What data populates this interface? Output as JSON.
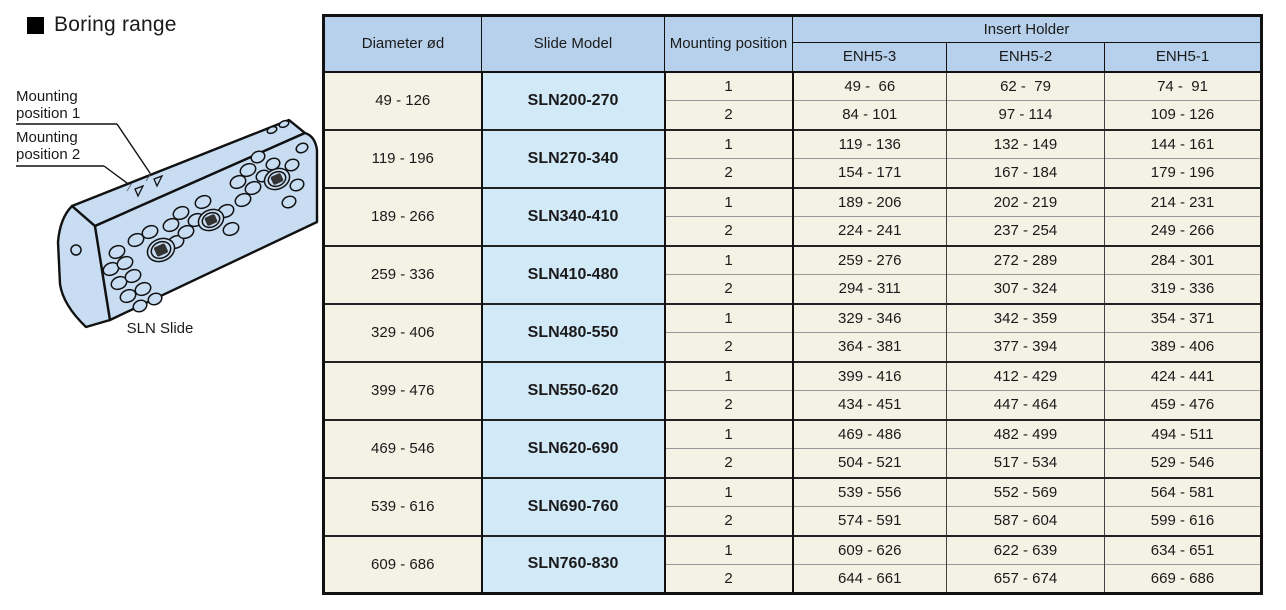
{
  "page": {
    "title": "Boring range"
  },
  "figure": {
    "label_position1": "Mounting position 1",
    "label_position2": "Mounting position 2",
    "caption": "SLN Slide"
  },
  "table": {
    "headers": {
      "diameter": "Diameter ød",
      "slide_model": "Slide Model",
      "mounting_position": "Mounting position",
      "insert_holder": "Insert Holder",
      "holder_models": [
        "ENH5-3",
        "ENH5-2",
        "ENH5-1"
      ]
    },
    "rows": [
      {
        "diameter": "49 - 126",
        "model": "SLN200-270",
        "positions": [
          {
            "position": "1",
            "ranges": [
              "49 -  66",
              "62 -  79",
              "74 -  91"
            ]
          },
          {
            "position": "2",
            "ranges": [
              "84 - 101",
              "97 - 114",
              "109 - 126"
            ]
          }
        ]
      },
      {
        "diameter": "119 - 196",
        "model": "SLN270-340",
        "positions": [
          {
            "position": "1",
            "ranges": [
              "119 - 136",
              "132 - 149",
              "144 - 161"
            ]
          },
          {
            "position": "2",
            "ranges": [
              "154 - 171",
              "167 - 184",
              "179 - 196"
            ]
          }
        ]
      },
      {
        "diameter": "189 - 266",
        "model": "SLN340-410",
        "positions": [
          {
            "position": "1",
            "ranges": [
              "189 - 206",
              "202 - 219",
              "214 - 231"
            ]
          },
          {
            "position": "2",
            "ranges": [
              "224 - 241",
              "237 - 254",
              "249 - 266"
            ]
          }
        ]
      },
      {
        "diameter": "259 - 336",
        "model": "SLN410-480",
        "positions": [
          {
            "position": "1",
            "ranges": [
              "259 - 276",
              "272 - 289",
              "284 - 301"
            ]
          },
          {
            "position": "2",
            "ranges": [
              "294 - 311",
              "307 - 324",
              "319 - 336"
            ]
          }
        ]
      },
      {
        "diameter": "329 - 406",
        "model": "SLN480-550",
        "positions": [
          {
            "position": "1",
            "ranges": [
              "329 - 346",
              "342 - 359",
              "354 - 371"
            ]
          },
          {
            "position": "2",
            "ranges": [
              "364 - 381",
              "377 - 394",
              "389 - 406"
            ]
          }
        ]
      },
      {
        "diameter": "399 - 476",
        "model": "SLN550-620",
        "positions": [
          {
            "position": "1",
            "ranges": [
              "399 - 416",
              "412 - 429",
              "424 - 441"
            ]
          },
          {
            "position": "2",
            "ranges": [
              "434 - 451",
              "447 - 464",
              "459 - 476"
            ]
          }
        ]
      },
      {
        "diameter": "469 - 546",
        "model": "SLN620-690",
        "positions": [
          {
            "position": "1",
            "ranges": [
              "469 - 486",
              "482 - 499",
              "494 - 511"
            ]
          },
          {
            "position": "2",
            "ranges": [
              "504 - 521",
              "517 - 534",
              "529 - 546"
            ]
          }
        ]
      },
      {
        "diameter": "539 - 616",
        "model": "SLN690-760",
        "positions": [
          {
            "position": "1",
            "ranges": [
              "539 - 556",
              "552 - 569",
              "564 - 581"
            ]
          },
          {
            "position": "2",
            "ranges": [
              "574 - 591",
              "587 - 604",
              "599 - 616"
            ]
          }
        ]
      },
      {
        "diameter": "609 - 686",
        "model": "SLN760-830",
        "positions": [
          {
            "position": "1",
            "ranges": [
              "609 - 626",
              "622 - 639",
              "634 - 651"
            ]
          },
          {
            "position": "2",
            "ranges": [
              "644 - 661",
              "657 - 674",
              "669 - 686"
            ]
          }
        ]
      }
    ]
  },
  "colors": {
    "header_bg": "#b7d1ec",
    "model_bg": "#d2e9f8",
    "cell_bg": "#f4f1e5",
    "block_fill": "#c8dcf2",
    "border": "#111111"
  }
}
